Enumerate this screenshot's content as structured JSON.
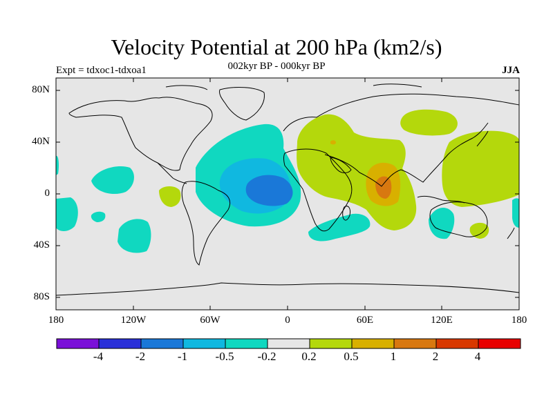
{
  "title": "Velocity Potential at 200 hPa (km2/s)",
  "subtitle": "002kyr BP - 000kyr BP",
  "experiment_label": "Expt = tdxoc1-tdxoa1",
  "season_label": "JJA",
  "axes": {
    "lat_labels": [
      "80N",
      "40N",
      "0",
      "40S",
      "80S"
    ],
    "lon_labels": [
      "180",
      "120W",
      "60W",
      "0",
      "60E",
      "120E",
      "180"
    ]
  },
  "colorbar": {
    "labels": [
      "-4",
      "-2",
      "-1",
      "-0.5",
      "-0.2",
      "0.2",
      "0.5",
      "1",
      "2",
      "4"
    ],
    "colors": [
      "#7a10d8",
      "#2a30d8",
      "#1a78d8",
      "#10b8e0",
      "#10d8c0",
      "#e6e6e6",
      "#b4d80c",
      "#d8b000",
      "#d87810",
      "#d83800",
      "#e80000"
    ]
  },
  "colors": {
    "ocean_background": "#e6e6e6",
    "coastline": "#000000"
  }
}
